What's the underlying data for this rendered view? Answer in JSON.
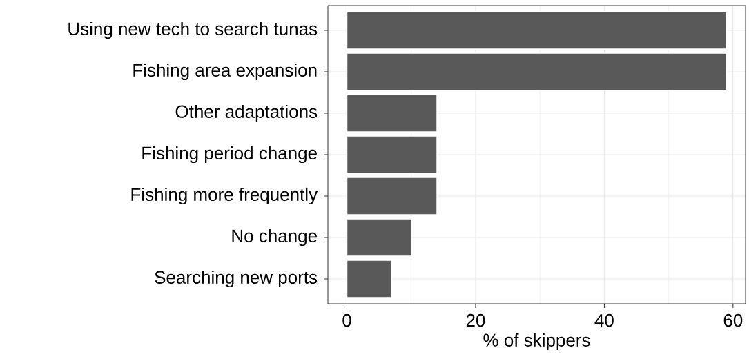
{
  "chart_data": {
    "type": "bar",
    "orientation": "horizontal",
    "xlabel": "% of skippers",
    "categories": [
      "Using new tech to search tunas",
      "Fishing area expansion",
      "Other adaptations",
      "Fishing period change",
      "Fishing more frequently",
      "No change",
      "Searching new ports"
    ],
    "values": [
      59,
      59,
      14,
      14,
      14,
      10,
      7
    ],
    "color": "#595959",
    "xlim": [
      -2.95,
      61.95
    ],
    "xticks": [
      0,
      20,
      40,
      60
    ],
    "grid": true
  }
}
